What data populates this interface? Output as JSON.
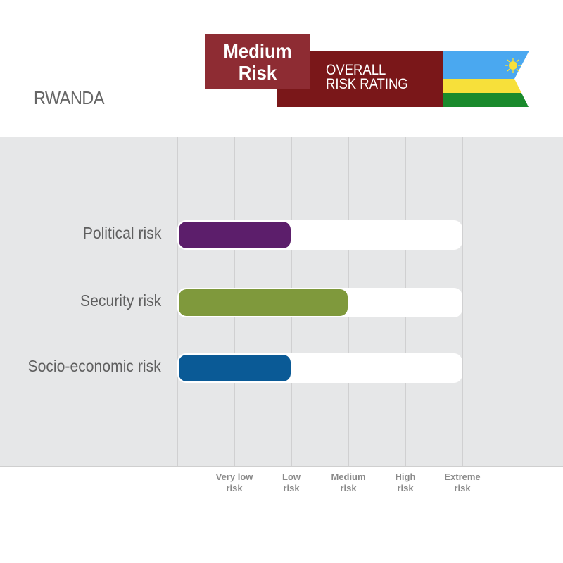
{
  "header": {
    "country": "RWANDA",
    "rating_line1": "Medium",
    "rating_line2": "Risk",
    "overall_line1": "OVERALL",
    "overall_line2": "RISK RATING",
    "flag_icon": "rwanda-flag-icon",
    "colors": {
      "rating_box": "#8e2c33",
      "ribbon": "#7a1719",
      "flag_blue": "#4aa8f0",
      "flag_yellow": "#f7e03a",
      "flag_green": "#1a8a2c"
    }
  },
  "chart_data": {
    "type": "bar",
    "orientation": "horizontal",
    "categories": [
      "Political risk",
      "Security risk",
      "Socio-economic risk"
    ],
    "values": [
      2,
      3,
      2
    ],
    "colors": [
      "#5c1e6b",
      "#7f993c",
      "#0a5a96"
    ],
    "scale": [
      "Very low risk",
      "Low risk",
      "Medium risk",
      "High risk",
      "Extreme risk"
    ],
    "scale_lines": [
      [
        "Very low",
        "risk"
      ],
      [
        "Low",
        "risk"
      ],
      [
        "Medium",
        "risk"
      ],
      [
        "High",
        "risk"
      ],
      [
        "Extreme",
        "risk"
      ]
    ],
    "xlim": [
      0,
      5
    ],
    "grid": true
  }
}
